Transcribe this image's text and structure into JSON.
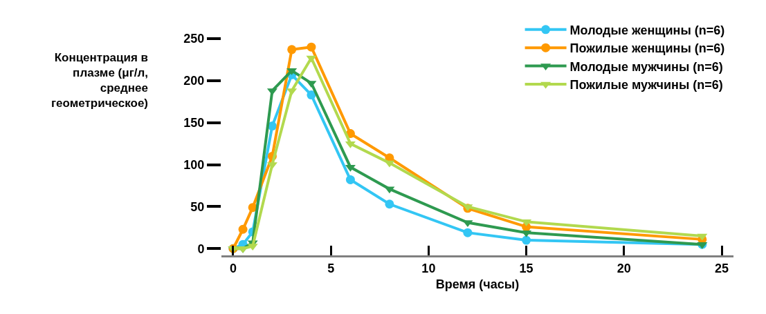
{
  "chart_data": {
    "type": "line",
    "xlabel": "Время (часы)",
    "ylabel": "Концентрация в плазме (μг/л, среднее геометрическое)",
    "x": [
      0,
      0.5,
      1,
      2,
      3,
      4,
      6,
      8,
      12,
      15,
      24
    ],
    "xlim": [
      -0.6,
      25.6
    ],
    "xticks": [
      0,
      5,
      10,
      15,
      20,
      25
    ],
    "ylim": [
      -8,
      250
    ],
    "yticks": [
      0,
      50,
      100,
      150,
      200,
      250
    ],
    "legend": "top right",
    "series": [
      {
        "name": "Молодые женщины (n=6)",
        "color": "#33c6f4",
        "marker": "circle",
        "values": [
          0,
          5,
          20,
          146,
          207,
          183,
          82,
          53,
          19,
          10,
          5
        ]
      },
      {
        "name": "Пожилые женщины (n=6)",
        "color": "#ff9900",
        "marker": "circle",
        "values": [
          0,
          23,
          49,
          110,
          237,
          240,
          137,
          108,
          48,
          26,
          11
        ]
      },
      {
        "name": "Молодые мужчины (n=6)",
        "color": "#2e9a50",
        "marker": "triangle",
        "values": [
          0,
          0,
          7,
          188,
          212,
          197,
          97,
          71,
          31,
          19,
          5
        ]
      },
      {
        "name": "Пожилые мужчины (n=6)",
        "color": "#b2d94e",
        "marker": "triangle",
        "values": [
          0,
          0,
          3,
          100,
          188,
          227,
          125,
          102,
          50,
          32,
          15
        ]
      }
    ]
  }
}
